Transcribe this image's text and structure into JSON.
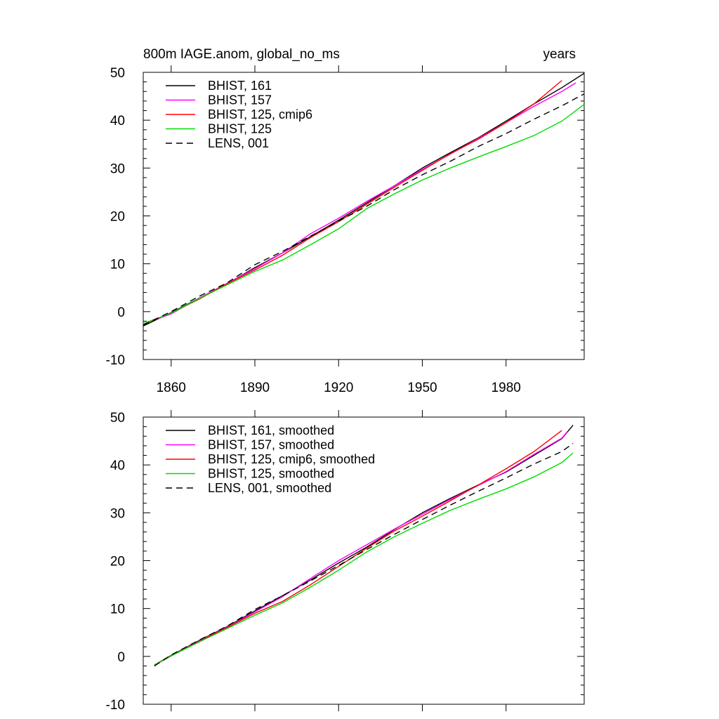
{
  "chart_data": [
    {
      "type": "line",
      "title_left": "800m IAGE.anom, global_no_ms",
      "title_right": "years",
      "xlabel": "",
      "ylabel": "",
      "xlim": [
        1850,
        2008
      ],
      "ylim": [
        -10,
        50
      ],
      "x_ticks": [
        1860,
        1890,
        1920,
        1950,
        1980
      ],
      "x_tick_labels": [
        "1860",
        "1890",
        "1920",
        "1950",
        "1980"
      ],
      "y_ticks": [
        -10,
        0,
        10,
        20,
        30,
        40,
        50
      ],
      "y_tick_labels": [
        "-10",
        "0",
        "10",
        "20",
        "30",
        "40",
        "50"
      ],
      "legend_position": "top-left",
      "series": [
        {
          "name": "BHIST, 161",
          "color": "#000000",
          "dash": "solid",
          "x": [
            1850,
            1860,
            1870,
            1880,
            1890,
            1900,
            1910,
            1920,
            1930,
            1940,
            1950,
            1960,
            1970,
            1980,
            1990,
            2000,
            2008
          ],
          "y": [
            -3.0,
            -0.2,
            2.8,
            5.8,
            9.2,
            12.3,
            15.7,
            19.1,
            22.7,
            26.3,
            30.0,
            33.2,
            36.3,
            39.8,
            43.4,
            46.8,
            49.8
          ]
        },
        {
          "name": "BHIST, 157",
          "color": "#ff00ff",
          "dash": "solid",
          "x": [
            1850,
            1860,
            1870,
            1880,
            1890,
            1900,
            1910,
            1920,
            1930,
            1940,
            1950,
            1960,
            1970,
            1980,
            1990,
            2000,
            2005
          ],
          "y": [
            -2.5,
            -0.5,
            2.8,
            5.9,
            9.0,
            12.3,
            16.3,
            19.5,
            23.0,
            26.3,
            29.7,
            32.9,
            36.2,
            39.5,
            42.9,
            46.0,
            47.8
          ]
        },
        {
          "name": "BHIST, 125, cmip6",
          "color": "#ff0000",
          "dash": "solid",
          "x": [
            1850,
            1860,
            1870,
            1880,
            1890,
            1900,
            1910,
            1920,
            1930,
            1940,
            1950,
            1960,
            1970,
            1980,
            1990,
            2000
          ],
          "y": [
            -2.6,
            -0.3,
            2.6,
            5.8,
            8.7,
            11.8,
            15.5,
            18.8,
            22.4,
            26.0,
            29.5,
            33.0,
            36.0,
            39.5,
            43.4,
            48.3
          ]
        },
        {
          "name": "BHIST, 125",
          "color": "#00dd00",
          "dash": "solid",
          "x": [
            1850,
            1860,
            1870,
            1880,
            1890,
            1900,
            1910,
            1920,
            1930,
            1940,
            1950,
            1960,
            1970,
            1980,
            1990,
            2000,
            2008
          ],
          "y": [
            -2.5,
            -0.3,
            2.7,
            5.6,
            8.4,
            10.8,
            14.0,
            17.3,
            21.5,
            24.6,
            27.5,
            30.0,
            32.3,
            34.5,
            36.8,
            39.8,
            43.3
          ]
        },
        {
          "name": "LENS, 001",
          "color": "#000000",
          "dash": "dashed",
          "x": [
            1850,
            1860,
            1870,
            1880,
            1890,
            1900,
            1910,
            1920,
            1930,
            1940,
            1950,
            1960,
            1970,
            1980,
            1990,
            2000,
            2008
          ],
          "y": [
            -2.8,
            0.0,
            3.2,
            6.0,
            9.8,
            12.6,
            15.8,
            18.9,
            22.0,
            25.5,
            28.6,
            31.4,
            34.5,
            37.2,
            40.2,
            43.0,
            45.5
          ]
        }
      ]
    },
    {
      "type": "line",
      "title_left": "",
      "title_right": "",
      "xlabel": "",
      "ylabel": "",
      "xlim": [
        1850,
        2008
      ],
      "ylim": [
        -10,
        50
      ],
      "x_ticks": [
        1860,
        1890,
        1920,
        1950,
        1980
      ],
      "x_tick_labels": [],
      "y_ticks": [
        -10,
        0,
        10,
        20,
        30,
        40,
        50
      ],
      "y_tick_labels": [
        "-10",
        "0",
        "10",
        "20",
        "30",
        "40",
        "50"
      ],
      "legend_position": "top-left",
      "series": [
        {
          "name": "BHIST, 161, smoothed",
          "color": "#000000",
          "dash": "solid",
          "x": [
            1854,
            1860,
            1870,
            1880,
            1890,
            1900,
            1910,
            1920,
            1930,
            1940,
            1950,
            1960,
            1970,
            1980,
            1990,
            2000,
            2004
          ],
          "y": [
            -1.8,
            0.2,
            3.3,
            6.2,
            9.5,
            12.7,
            16.0,
            19.5,
            22.8,
            26.5,
            30.0,
            33.0,
            35.8,
            38.5,
            42.0,
            45.5,
            48.3
          ]
        },
        {
          "name": "BHIST, 157, smoothed",
          "color": "#ff00ff",
          "dash": "solid",
          "x": [
            1854,
            1860,
            1870,
            1880,
            1890,
            1900,
            1910,
            1920,
            1930,
            1940,
            1950,
            1960,
            1970,
            1980,
            1990,
            2000,
            2002
          ],
          "y": [
            -1.9,
            0.1,
            3.2,
            6.1,
            9.3,
            12.5,
            16.3,
            20.0,
            23.3,
            26.6,
            29.7,
            32.8,
            35.7,
            38.6,
            42.2,
            45.6,
            47.0
          ]
        },
        {
          "name": "BHIST, 125, cmip6, smoothed",
          "color": "#ff0000",
          "dash": "solid",
          "x": [
            1854,
            1860,
            1870,
            1880,
            1890,
            1900,
            1910,
            1920,
            1930,
            1940,
            1950,
            1960,
            1970,
            1980,
            1990,
            2000
          ],
          "y": [
            -1.8,
            0.1,
            3.1,
            6.0,
            9.0,
            11.5,
            15.0,
            18.8,
            22.6,
            26.2,
            29.3,
            32.5,
            35.8,
            39.2,
            42.8,
            47.2
          ]
        },
        {
          "name": "BHIST, 125, smoothed",
          "color": "#00dd00",
          "dash": "solid",
          "x": [
            1854,
            1860,
            1870,
            1880,
            1890,
            1900,
            1910,
            1920,
            1930,
            1940,
            1950,
            1960,
            1970,
            1980,
            1990,
            2000,
            2004
          ],
          "y": [
            -1.8,
            0.1,
            3.0,
            5.8,
            8.6,
            11.2,
            14.5,
            18.0,
            21.8,
            25.0,
            27.8,
            30.5,
            32.8,
            35.0,
            37.5,
            40.5,
            42.5
          ]
        },
        {
          "name": "LENS, 001, smoothed",
          "color": "#000000",
          "dash": "dashed",
          "x": [
            1854,
            1860,
            1870,
            1880,
            1890,
            1900,
            1910,
            1920,
            1930,
            1940,
            1950,
            1960,
            1970,
            1980,
            1990,
            2000,
            2004
          ],
          "y": [
            -2.0,
            0.3,
            3.4,
            6.3,
            9.8,
            12.7,
            15.8,
            19.0,
            22.3,
            25.5,
            28.6,
            31.6,
            34.5,
            37.3,
            40.2,
            42.8,
            44.5
          ]
        }
      ]
    }
  ]
}
